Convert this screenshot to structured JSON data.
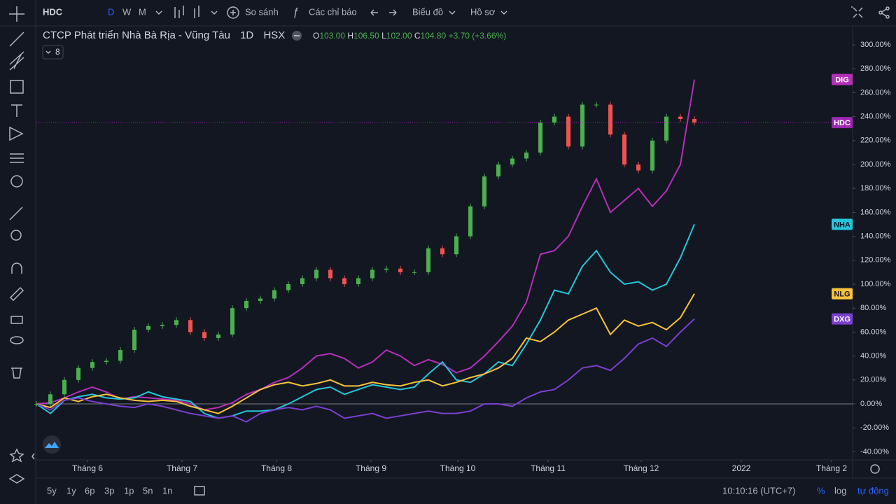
{
  "toolbar": {
    "symbol": "HDC",
    "intervals": [
      "D",
      "W",
      "M"
    ],
    "compare": "So sánh",
    "indicators": "Các chỉ báo",
    "chart": "Biểu đồ",
    "profile": "Hồ sơ"
  },
  "legend": {
    "title": "CTCP Phát triển Nhà Bà Rịa - Vũng Tàu",
    "interval": "1D",
    "exchange": "HSX",
    "ohlc": [
      {
        "label": "O",
        "value": "103.00"
      },
      {
        "label": "H",
        "value": "106.50"
      },
      {
        "label": "L",
        "value": "102.00"
      },
      {
        "label": "C",
        "value": "104.80"
      }
    ],
    "change": "+3.70 (+3.66%)",
    "collapsed_count": "8"
  },
  "bottom": {
    "ranges": [
      "5y",
      "1y",
      "6p",
      "3p",
      "1p",
      "5n",
      "1n"
    ],
    "time": "10:10:16 (UTC+7)",
    "percent": "%",
    "log": "log",
    "auto": "tự động"
  },
  "chart_data": {
    "type": "line",
    "x": [
      0,
      1,
      2,
      3,
      4,
      5,
      6,
      7,
      8,
      9,
      10,
      11,
      12,
      13,
      14,
      15,
      16,
      17,
      18,
      19,
      20,
      21,
      22,
      23,
      24,
      25,
      26,
      27,
      28,
      29,
      30,
      31,
      32,
      33,
      34,
      35,
      36,
      37,
      38,
      39,
      40,
      41,
      42,
      43,
      44,
      45,
      46,
      47
    ],
    "xlim": [
      0,
      58.3
    ],
    "xticks": [
      {
        "value": 3.65,
        "label": "Tháng 6"
      },
      {
        "value": 10.4,
        "label": "Tháng 7"
      },
      {
        "value": 17.15,
        "label": "Tháng 8"
      },
      {
        "value": 23.9,
        "label": "Tháng 9"
      },
      {
        "value": 30.1,
        "label": "Tháng 10"
      },
      {
        "value": 36.55,
        "label": "Tháng 11"
      },
      {
        "value": 43.2,
        "label": "Tháng 12"
      },
      {
        "value": 50.35,
        "label": "2022"
      },
      {
        "value": 56.8,
        "label": "Tháng 2"
      }
    ],
    "ylim": [
      -46.8,
      315.8
    ],
    "yticks": [
      {
        "value": -40,
        "label": "-40.00%"
      },
      {
        "value": -20,
        "label": "-20.00%"
      },
      {
        "value": 0,
        "label": "0.00%"
      },
      {
        "value": 20,
        "label": "20.00%"
      },
      {
        "value": 40,
        "label": "40.00%"
      },
      {
        "value": 60,
        "label": "60.00%"
      },
      {
        "value": 80,
        "label": "80.00%"
      },
      {
        "value": 100,
        "label": "100.00%"
      },
      {
        "value": 120,
        "label": "120.00%"
      },
      {
        "value": 140,
        "label": "140.00%"
      },
      {
        "value": 160,
        "label": "160.00%"
      },
      {
        "value": 180,
        "label": "180.00%"
      },
      {
        "value": 200,
        "label": "200.00%"
      },
      {
        "value": 220,
        "label": "220.00%"
      },
      {
        "value": 240,
        "label": "240.00%"
      },
      {
        "value": 260,
        "label": "260.00%"
      },
      {
        "value": 280,
        "label": "280.00%"
      },
      {
        "value": 300,
        "label": "300.00%"
      }
    ],
    "grid": false,
    "series": [
      {
        "name": "DIG",
        "color": "#b52fb8",
        "values": [
          0,
          1,
          5,
          10,
          14,
          10,
          4,
          6,
          5,
          4,
          3,
          0,
          -5,
          -3,
          1,
          8,
          12,
          18,
          22,
          30,
          40,
          42,
          38,
          30,
          35,
          45,
          40,
          32,
          37,
          33,
          26,
          30,
          40,
          52,
          65,
          85,
          125,
          128,
          140,
          165,
          188,
          160,
          170,
          180,
          165,
          178,
          200,
          271
        ]
      },
      {
        "name": "NHA",
        "color": "#26c6da",
        "values": [
          0,
          -8,
          3,
          6,
          8,
          5,
          4,
          5,
          10,
          6,
          4,
          2,
          -8,
          -12,
          -10,
          -6,
          -6,
          -5,
          0,
          6,
          12,
          14,
          8,
          12,
          16,
          14,
          12,
          14,
          25,
          35,
          20,
          18,
          25,
          35,
          32,
          50,
          70,
          95,
          92,
          115,
          128,
          110,
          100,
          102,
          95,
          100,
          122,
          150
        ]
      },
      {
        "name": "NLG",
        "color": "#f9c23c",
        "values": [
          0,
          -3,
          5,
          2,
          6,
          8,
          5,
          3,
          2,
          3,
          2,
          -2,
          -5,
          -8,
          -2,
          5,
          12,
          16,
          18,
          15,
          17,
          20,
          15,
          15,
          18,
          16,
          15,
          18,
          20,
          15,
          18,
          22,
          25,
          30,
          38,
          55,
          52,
          60,
          70,
          75,
          80,
          58,
          70,
          65,
          68,
          62,
          72,
          92
        ]
      },
      {
        "name": "DXG",
        "color": "#7b3fd0",
        "values": [
          0,
          -5,
          3,
          5,
          2,
          0,
          -2,
          -3,
          0,
          -2,
          -5,
          -8,
          -10,
          -12,
          -10,
          -15,
          -8,
          -5,
          -3,
          -5,
          -2,
          -5,
          -12,
          -10,
          -8,
          -12,
          -10,
          -8,
          -6,
          -8,
          -8,
          -6,
          0,
          0,
          -2,
          5,
          10,
          12,
          20,
          30,
          32,
          28,
          38,
          50,
          55,
          48,
          60,
          71
        ]
      },
      {
        "name": "HDC",
        "color": "#9c27b0",
        "style": "candles",
        "up_color": "#4caf50",
        "down_color": "#ef5350",
        "values": [
          0,
          8,
          20,
          30,
          35,
          36,
          45,
          62,
          65,
          66,
          70,
          60,
          55,
          58,
          80,
          86,
          88,
          95,
          100,
          105,
          112,
          105,
          100,
          105,
          112,
          113,
          110,
          110,
          130,
          125,
          140,
          165,
          190,
          200,
          205,
          210,
          235,
          240,
          215,
          250,
          250,
          225,
          200,
          195,
          220,
          240,
          238,
          235
        ]
      }
    ]
  }
}
